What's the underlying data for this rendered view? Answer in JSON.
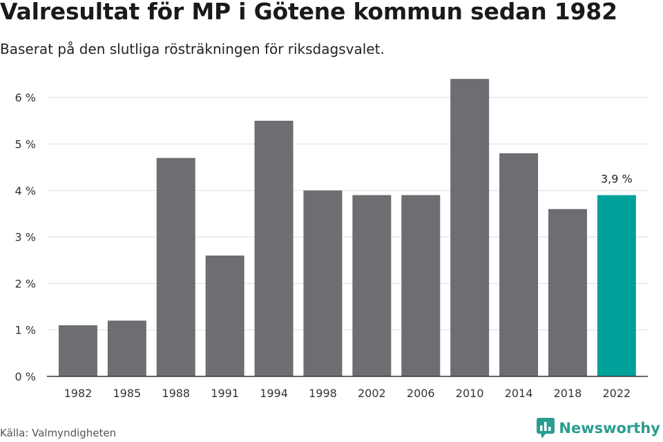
{
  "header": {
    "title": "Valresultat för MP i Götene kommun sedan 1982",
    "subtitle": "Baserat på den slutliga rösträkningen för riksdagsvalet."
  },
  "footer": {
    "source": "Källa: Valmyndigheten",
    "brand": "Newsworthy"
  },
  "colors": {
    "bar": "#6e6d72",
    "highlight": "#00a19a",
    "grid": "#dddddd",
    "axis": "#333333",
    "brand": "#2a9d8f"
  },
  "chart_data": {
    "type": "bar",
    "title": "Valresultat för MP i Götene kommun sedan 1982",
    "subtitle": "Baserat på den slutliga rösträkningen för riksdagsvalet.",
    "xlabel": "",
    "ylabel": "",
    "categories": [
      "1982",
      "1985",
      "1988",
      "1991",
      "1994",
      "1998",
      "2002",
      "2006",
      "2010",
      "2014",
      "2018",
      "2022"
    ],
    "values": [
      1.1,
      1.2,
      4.7,
      2.6,
      5.5,
      4.0,
      3.9,
      3.9,
      6.4,
      4.8,
      3.6,
      3.9
    ],
    "unit": "%",
    "ylim": [
      0,
      6.5
    ],
    "yticks": [
      0,
      1,
      2,
      3,
      4,
      5,
      6
    ],
    "ytick_labels": [
      "0 %",
      "1 %",
      "2 %",
      "3 %",
      "4 %",
      "5 %",
      "6 %"
    ],
    "grid": true,
    "highlight_index": 11,
    "annotations": [
      {
        "category": "2022",
        "text": "3,9 %"
      }
    ]
  }
}
